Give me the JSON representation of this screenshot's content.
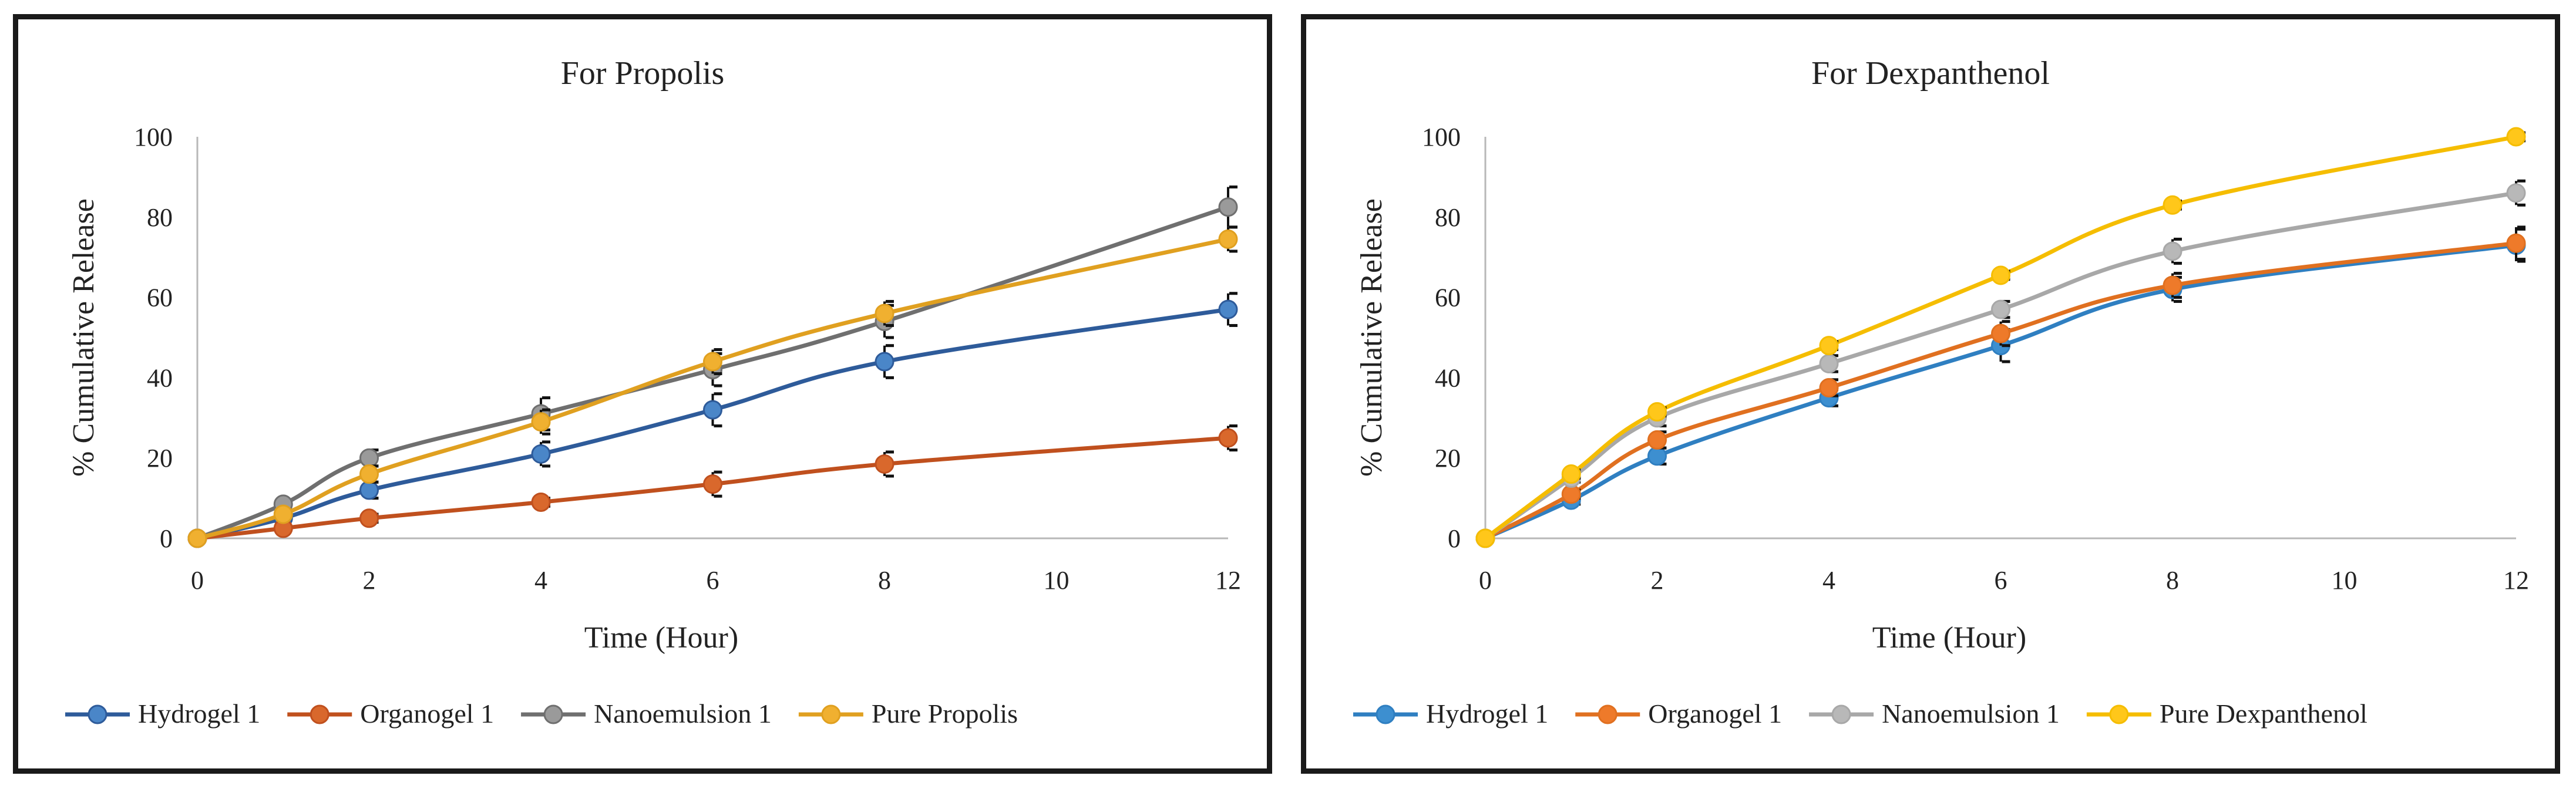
{
  "chart_data": [
    {
      "type": "line",
      "title": "For Propolis",
      "xlabel": "Time (Hour)",
      "ylabel": "% Cumulative Release",
      "xlim": [
        0,
        12
      ],
      "ylim": [
        0,
        100
      ],
      "xticks": [
        0,
        2,
        4,
        6,
        8,
        10,
        12
      ],
      "yticks": [
        0,
        20,
        40,
        60,
        80,
        100
      ],
      "x": [
        0,
        1,
        2,
        4,
        6,
        8,
        12
      ],
      "grid": false,
      "legend_position": "bottom",
      "series": [
        {
          "name": "Hydrogel 1",
          "color": "#2e5b9a",
          "marker": "#4a86c8",
          "values": [
            0,
            5,
            12,
            21,
            32,
            44,
            57
          ],
          "errors": [
            0,
            0,
            2,
            3,
            4,
            4,
            4
          ]
        },
        {
          "name": "Organogel 1",
          "color": "#c0501e",
          "marker": "#d9682c",
          "values": [
            0,
            2.5,
            5,
            9,
            13.5,
            18.5,
            25
          ],
          "errors": [
            0,
            0,
            1,
            1,
            3,
            3,
            3
          ]
        },
        {
          "name": "Nanoemulsion 1",
          "color": "#6f6f6f",
          "marker": "#9a9a9a",
          "values": [
            0,
            8.5,
            20,
            31,
            42,
            54,
            82.5
          ],
          "errors": [
            0,
            0,
            2,
            4,
            4,
            4,
            5
          ]
        },
        {
          "name": "Pure Propolis",
          "color": "#e0a020",
          "marker": "#f0b030",
          "values": [
            0,
            6,
            16,
            29,
            44,
            56,
            74.5
          ],
          "errors": [
            0,
            0,
            2,
            3,
            3,
            3,
            3
          ]
        }
      ]
    },
    {
      "type": "line",
      "title": "For Dexpanthenol",
      "xlabel": "Time (Hour)",
      "ylabel": "% Cumulative Release",
      "xlim": [
        0,
        12
      ],
      "ylim": [
        0,
        100
      ],
      "xticks": [
        0,
        2,
        4,
        6,
        8,
        10,
        12
      ],
      "yticks": [
        0,
        20,
        40,
        60,
        80,
        100
      ],
      "x": [
        0,
        1,
        2,
        4,
        6,
        8,
        12
      ],
      "grid": false,
      "legend_position": "bottom",
      "series": [
        {
          "name": "Hydrogel 1",
          "color": "#2f7fc1",
          "marker": "#3d8fd0",
          "values": [
            0,
            9.5,
            20.5,
            35,
            48,
            62,
            73
          ],
          "errors": [
            0,
            1,
            2,
            2,
            4,
            3,
            4
          ]
        },
        {
          "name": "Organogel 1",
          "color": "#e07020",
          "marker": "#ee7a2a",
          "values": [
            0,
            11,
            24.5,
            37.5,
            51,
            63,
            73.5
          ],
          "errors": [
            0,
            1,
            2,
            2,
            3,
            3,
            4
          ]
        },
        {
          "name": "Nanoemulsion 1",
          "color": "#a8a8a8",
          "marker": "#b8b8b8",
          "values": [
            0,
            15,
            30,
            43.5,
            57,
            71.5,
            86
          ],
          "errors": [
            0,
            1,
            2,
            2,
            2,
            3,
            3
          ]
        },
        {
          "name": "Pure Dexpanthenol",
          "color": "#f5bd00",
          "marker": "#ffc71a",
          "values": [
            0,
            16,
            31.5,
            48,
            65.5,
            83,
            100
          ],
          "errors": [
            0,
            1,
            1,
            1,
            1,
            1,
            1
          ]
        }
      ]
    }
  ]
}
